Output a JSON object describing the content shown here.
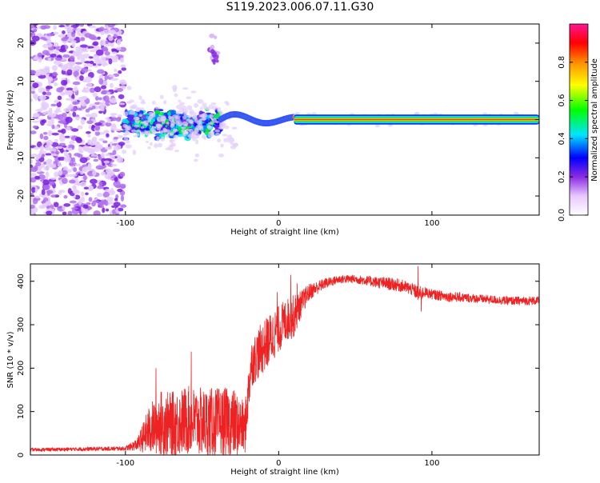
{
  "figure": {
    "title": "S119.2023.006.07.11.G30"
  },
  "chart_data": [
    {
      "type": "heatmap",
      "panel": "top",
      "title": "",
      "xlabel": "Height of straight line (km)",
      "ylabel": "Frequency (Hz)",
      "xlim": [
        -162,
        170
      ],
      "ylim": [
        -25,
        25
      ],
      "xticks": [
        -100,
        0,
        100
      ],
      "yticks": [
        -20,
        -10,
        0,
        10,
        20
      ],
      "colorbar": {
        "label": "Normalized spectral amplitude",
        "range": [
          0,
          1
        ],
        "ticks": [
          0.0,
          0.2,
          0.4,
          0.6,
          0.8
        ],
        "colormap": [
          "#ffffff",
          "#8a2be2",
          "#0000ff",
          "#00e5ff",
          "#00ff00",
          "#ffff00",
          "#ff8c00",
          "#ff0000",
          "#ff1493"
        ]
      },
      "regions": [
        {
          "x": [
            -162,
            -101
          ],
          "y": [
            -25,
            25
          ],
          "amplitude": 0.1,
          "pattern": "scattered noise"
        },
        {
          "x": [
            -101,
            -38
          ],
          "y": [
            -6,
            4
          ],
          "amplitude": 0.3,
          "pattern": "turbulent"
        },
        {
          "x": [
            -45,
            -40
          ],
          "y": [
            15,
            22
          ],
          "amplitude": 0.15,
          "pattern": "isolated blob"
        },
        {
          "x": [
            -38,
            10
          ],
          "y": [
            -2,
            2
          ],
          "amplitude": 0.5,
          "pattern": "wavy line"
        },
        {
          "x": [
            10,
            170
          ],
          "y": [
            -0.6,
            0.6
          ],
          "amplitude": 0.9,
          "pattern": "steady tone at 0 Hz"
        }
      ]
    },
    {
      "type": "line",
      "panel": "bottom",
      "title": "",
      "xlabel": "Height of straight line (km)",
      "ylabel": "SNR (10 * v/v)",
      "xlim": [
        -162,
        170
      ],
      "ylim": [
        0,
        440
      ],
      "xticks": [
        -100,
        0,
        100
      ],
      "yticks": [
        0,
        100,
        200,
        300,
        400
      ],
      "color": "#ee2222",
      "series": [
        {
          "envelope": {
            "x": [
              -162,
              -100,
              -92,
              -85,
              -78,
              -70,
              -60,
              -50,
              -40,
              -30,
              -22,
              -18,
              -12,
              -5,
              0,
              5,
              10,
              15,
              20,
              30,
              40,
              50,
              60,
              70,
              80,
              88,
              92,
              95,
              100,
              110,
              130,
              150,
              170
            ],
            "mean": [
              12,
              15,
              25,
              55,
              75,
              70,
              80,
              75,
              75,
              75,
              60,
              210,
              240,
              270,
              290,
              310,
              320,
              350,
              375,
              395,
              405,
              405,
              400,
              395,
              390,
              380,
              370,
              375,
              370,
              365,
              360,
              355,
              355
            ],
            "spread": [
              4,
              5,
              15,
              55,
              75,
              75,
              80,
              80,
              80,
              80,
              60,
              55,
              60,
              60,
              55,
              50,
              50,
              30,
              20,
              12,
              10,
              10,
              12,
              15,
              15,
              15,
              20,
              12,
              12,
              12,
              10,
              10,
              10
            ]
          },
          "peaks": [
            {
              "x": 91,
              "y": 435
            },
            {
              "x": 93,
              "y": 330
            },
            {
              "x": -57,
              "y": 238
            },
            {
              "x": -80,
              "y": 200
            },
            {
              "x": 8,
              "y": 415
            },
            {
              "x": 12,
              "y": 395
            },
            {
              "x": -1,
              "y": 375
            }
          ]
        }
      ]
    }
  ]
}
